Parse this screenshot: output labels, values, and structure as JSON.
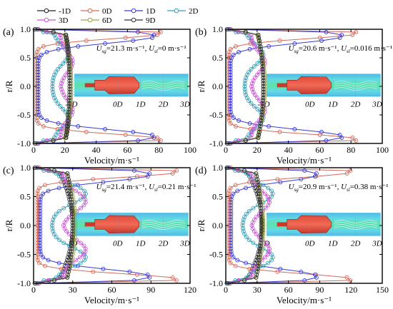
{
  "legend": [
    {
      "name": "-1D",
      "color": "#222222"
    },
    {
      "name": "0D",
      "color": "#d46a5a"
    },
    {
      "name": "1D",
      "color": "#3b3bd6"
    },
    {
      "name": "2D",
      "color": "#3a9fb5"
    },
    {
      "name": "3D",
      "color": "#cc55d6"
    },
    {
      "name": "6D",
      "color": "#9aa84a"
    },
    {
      "name": "9D",
      "color": "#333333"
    }
  ],
  "chart_data": [
    {
      "type": "line",
      "panel": "(a)",
      "xlabel": "Velocity/m·s⁻¹",
      "ylabel": "r/R",
      "xlim": [
        0,
        100
      ],
      "ylim": [
        -1.0,
        1.0
      ],
      "xticks": [
        0,
        20,
        40,
        60,
        80,
        100
      ],
      "yticks": [
        -1.0,
        -0.5,
        0.0,
        0.5,
        1.0
      ],
      "annotation": {
        "ug_label": "U",
        "ug_sub": "sg",
        "ug_value": "=21.3 m·s⁻¹, ",
        "ul_label": "U",
        "ul_sub": "sl",
        "ul_value": "=0 m·s⁻¹"
      },
      "inset_labels": [
        "-1D",
        "0D",
        "1D",
        "2D",
        "3D"
      ],
      "peaks": {
        "-1D": 24,
        "0D": 83,
        "1D": 78,
        "2D": 22,
        "3D": 25,
        "6D": 24,
        "9D": 23
      },
      "center": {
        "-1D": 20,
        "0D": 2,
        "1D": 3,
        "2D": 12,
        "3D": 17,
        "6D": 19,
        "9D": 20
      }
    },
    {
      "type": "line",
      "panel": "(b)",
      "xlabel": "Velocity/m·s⁻¹",
      "ylabel": "r/R",
      "xlim": [
        0,
        100
      ],
      "ylim": [
        -1.0,
        1.0
      ],
      "xticks": [
        0,
        20,
        40,
        60,
        80,
        100
      ],
      "yticks": [
        -1.0,
        -0.5,
        0.0,
        0.5,
        1.0
      ],
      "annotation": {
        "ug_label": "U",
        "ug_sub": "sg",
        "ug_value": "=20.6 m·s⁻¹, ",
        "ul_label": "U",
        "ul_sub": "sl",
        "ul_value": "=0.016 m·s⁻¹"
      },
      "inset_labels": [
        "-1D",
        "0D",
        "1D",
        "2D",
        "3D"
      ],
      "peaks": {
        "-1D": 24,
        "0D": 85,
        "1D": 75,
        "2D": 24,
        "3D": 25,
        "6D": 25,
        "9D": 24
      },
      "center": {
        "-1D": 20,
        "0D": 2,
        "1D": 3,
        "2D": 12,
        "3D": 16,
        "6D": 19,
        "9D": 20
      }
    },
    {
      "type": "line",
      "panel": "(c)",
      "xlabel": "Velocity/m·s⁻¹",
      "ylabel": "r/R",
      "xlim": [
        0,
        120
      ],
      "ylim": [
        -1.0,
        1.0
      ],
      "xticks": [
        0,
        30,
        60,
        90,
        120
      ],
      "yticks": [
        -1.0,
        -0.5,
        0.0,
        0.5,
        1.0
      ],
      "annotation": {
        "ug_label": "U",
        "ug_sub": "sg",
        "ug_value": "=21.4 m·s⁻¹, ",
        "ul_label": "U",
        "ul_sub": "sl",
        "ul_value": "=0.21 m·s⁻¹"
      },
      "inset_labels": [
        "-1D",
        "0D",
        "1D",
        "2D",
        "3D"
      ],
      "peaks": {
        "-1D": 30,
        "0D": 112,
        "1D": 90,
        "2D": 40,
        "3D": 40,
        "6D": 32,
        "9D": 30
      },
      "center": {
        "-1D": 18,
        "0D": 3,
        "1D": 5,
        "2D": 14,
        "3D": 22,
        "6D": 24,
        "9D": 25
      }
    },
    {
      "type": "line",
      "panel": "(d)",
      "xlabel": "Velocity/m·s⁻¹",
      "ylabel": "r/R",
      "xlim": [
        0,
        150
      ],
      "ylim": [
        -1.0,
        1.0
      ],
      "xticks": [
        0,
        30,
        60,
        90,
        120,
        150
      ],
      "yticks": [
        -1.0,
        -0.5,
        0.0,
        0.5,
        1.0
      ],
      "annotation": {
        "ug_label": "U",
        "ug_sub": "sg",
        "ug_value": "=20.9 m·s⁻¹, ",
        "ul_label": "U",
        "ul_sub": "sl",
        "ul_value": "=0.38 m·s⁻¹"
      },
      "inset_labels": [
        "-1D",
        "0D",
        "1D",
        "2D",
        "3D"
      ],
      "peaks": {
        "-1D": 35,
        "0D": 122,
        "1D": 88,
        "2D": 45,
        "3D": 42,
        "6D": 36,
        "9D": 34
      },
      "center": {
        "-1D": 18,
        "0D": 3,
        "1D": 5,
        "2D": 16,
        "3D": 24,
        "6D": 27,
        "9D": 28
      }
    }
  ]
}
